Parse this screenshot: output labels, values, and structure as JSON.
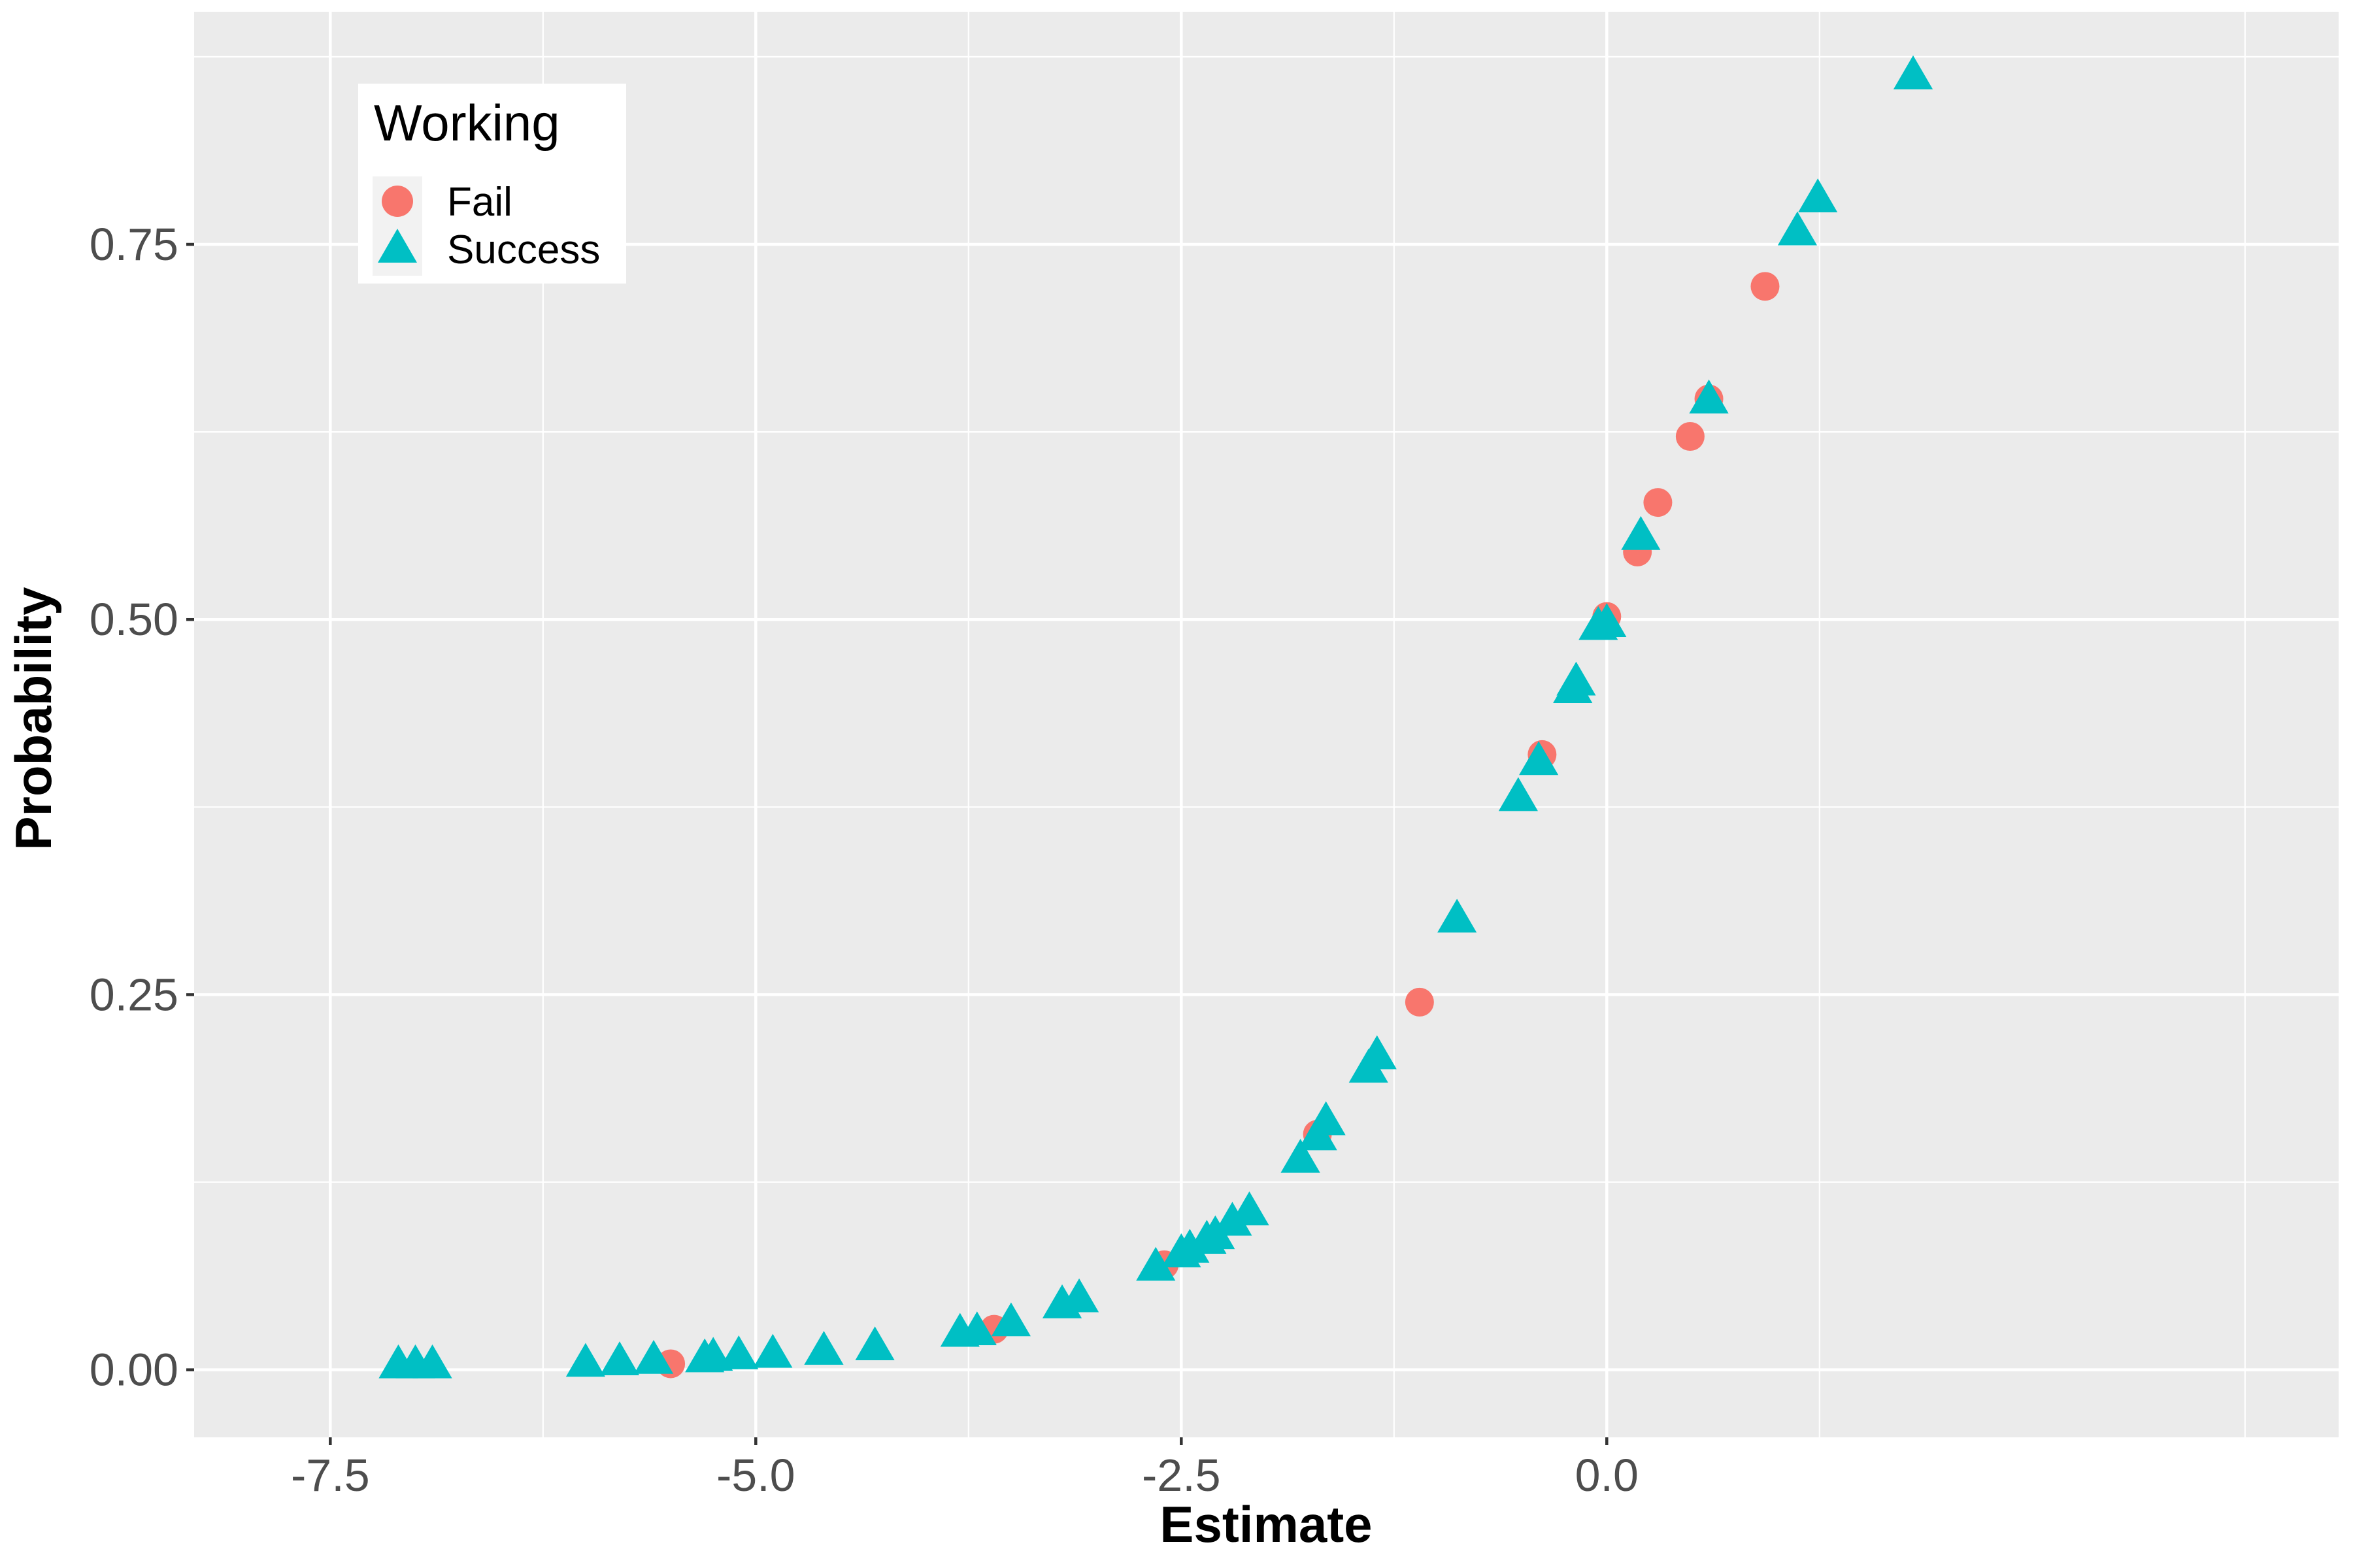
{
  "chart_data": {
    "type": "scatter",
    "title": "",
    "xlabel": "Estimate",
    "ylabel": "Probability",
    "xlim": [
      -8.3,
      4.3
    ],
    "ylim": [
      -0.045,
      0.905
    ],
    "x_ticks": [
      -7.5,
      -5.0,
      -2.5,
      0.0
    ],
    "x_tick_labels": [
      "-7.5",
      "-5.0",
      "-2.5",
      "0.0"
    ],
    "y_ticks": [
      0.0,
      0.25,
      0.5,
      0.75
    ],
    "y_tick_labels": [
      "0.00",
      "0.25",
      "0.50",
      "0.75"
    ],
    "grid": true,
    "panel_background": "#ebebeb",
    "legend": {
      "title": "Working",
      "placement": "top-left"
    },
    "series": [
      {
        "name": "Fail",
        "marker": "circle",
        "color": "#f8766d",
        "points": [
          [
            -5.5,
            0.004
          ],
          [
            -3.6,
            0.027
          ],
          [
            -2.6,
            0.07
          ],
          [
            -1.7,
            0.157
          ],
          [
            -1.1,
            0.245
          ],
          [
            -0.38,
            0.41
          ],
          [
            0.0,
            0.502
          ],
          [
            0.18,
            0.545
          ],
          [
            0.3,
            0.578
          ],
          [
            0.49,
            0.622
          ],
          [
            0.6,
            0.647
          ],
          [
            0.93,
            0.722
          ]
        ]
      },
      {
        "name": "Success",
        "marker": "triangle",
        "color": "#00bfc4",
        "points": [
          [
            -7.1,
            0.003
          ],
          [
            -7.0,
            0.003
          ],
          [
            -6.9,
            0.003
          ],
          [
            -6.0,
            0.004
          ],
          [
            -5.8,
            0.005
          ],
          [
            -5.6,
            0.006
          ],
          [
            -5.3,
            0.007
          ],
          [
            -5.25,
            0.008
          ],
          [
            -5.1,
            0.009
          ],
          [
            -4.9,
            0.01
          ],
          [
            -4.6,
            0.012
          ],
          [
            -4.3,
            0.015
          ],
          [
            -3.8,
            0.024
          ],
          [
            -3.7,
            0.025
          ],
          [
            -3.5,
            0.031
          ],
          [
            -3.2,
            0.043
          ],
          [
            -3.1,
            0.047
          ],
          [
            -2.65,
            0.068
          ],
          [
            -2.5,
            0.077
          ],
          [
            -2.45,
            0.08
          ],
          [
            -2.35,
            0.086
          ],
          [
            -2.3,
            0.089
          ],
          [
            -2.2,
            0.098
          ],
          [
            -2.1,
            0.105
          ],
          [
            -1.8,
            0.14
          ],
          [
            -1.7,
            0.155
          ],
          [
            -1.65,
            0.165
          ],
          [
            -1.4,
            0.2
          ],
          [
            -1.35,
            0.209
          ],
          [
            -0.88,
            0.3
          ],
          [
            -0.52,
            0.381
          ],
          [
            -0.4,
            0.405
          ],
          [
            -0.2,
            0.453
          ],
          [
            -0.18,
            0.458
          ],
          [
            -0.05,
            0.495
          ],
          [
            0.0,
            0.497
          ],
          [
            0.2,
            0.555
          ],
          [
            0.6,
            0.646
          ],
          [
            1.12,
            0.758
          ],
          [
            1.24,
            0.78
          ],
          [
            1.8,
            0.862
          ]
        ]
      }
    ]
  }
}
